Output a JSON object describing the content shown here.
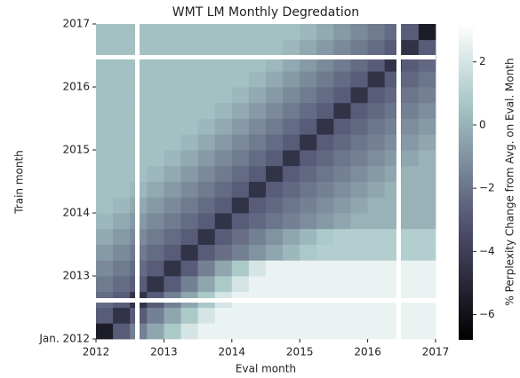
{
  "chart_data": {
    "type": "heatmap",
    "title": "WMT LM Monthly Degredation",
    "x_label": "Eval month",
    "y_label": "Train month",
    "colorbar_label": "% Perplexity Change from Avg. on Eval. Month",
    "colormap": "bone",
    "xlim": [
      2012,
      2017
    ],
    "ylim": [
      2012,
      2017
    ],
    "xticks": [
      2012,
      2013,
      2014,
      2015,
      2016,
      2017
    ],
    "yticks": [
      {
        "value": 2012,
        "label": "Jan. 2012"
      },
      2013,
      2014,
      2015,
      2016,
      2017
    ],
    "clim": [
      -6.8,
      3.2
    ],
    "cticks": [
      {
        "value": -6,
        "label": "−6"
      },
      {
        "value": -4,
        "label": "−4"
      },
      {
        "value": -2,
        "label": "−2"
      },
      0,
      2
    ],
    "xbins": [
      2012,
      2012.25,
      2012.5,
      2012.75,
      2013,
      2013.25,
      2013.5,
      2013.75,
      2014,
      2014.25,
      2014.5,
      2014.75,
      2015,
      2015.25,
      2015.5,
      2015.75,
      2016,
      2016.25,
      2016.5,
      2016.75,
      2017
    ],
    "ybins": [
      2012,
      2012.25,
      2012.5,
      2012.75,
      2013,
      2013.25,
      2013.5,
      2013.75,
      2014,
      2014.25,
      2014.5,
      2014.75,
      2015,
      2015.25,
      2015.5,
      2015.75,
      2016,
      2016.25,
      2016.5,
      2016.75,
      2017
    ],
    "values": [
      [
        -5.5,
        -2.8,
        -1.6,
        -0.4,
        0.8,
        2.0,
        2.6,
        2.6,
        2.6,
        2.6,
        2.6,
        2.6,
        2.6,
        2.6,
        2.6,
        2.6,
        2.6,
        2.6,
        2.6,
        2.6
      ],
      [
        -2.8,
        -4.5,
        -2.8,
        -1.6,
        -0.4,
        0.8,
        2.0,
        2.6,
        2.6,
        2.6,
        2.6,
        2.6,
        2.6,
        2.6,
        2.6,
        2.6,
        2.6,
        2.6,
        2.6,
        2.6
      ],
      [
        -2.3,
        -2.8,
        -4.5,
        -2.8,
        -1.6,
        -0.4,
        0.8,
        2.0,
        2.6,
        2.6,
        2.6,
        2.6,
        2.6,
        2.6,
        2.6,
        2.6,
        2.6,
        2.6,
        2.6,
        2.6
      ],
      [
        -1.8,
        -2.3,
        -2.8,
        -4.5,
        -2.8,
        -1.6,
        -0.4,
        0.8,
        2.0,
        2.6,
        2.6,
        2.6,
        2.6,
        2.6,
        2.6,
        2.6,
        2.6,
        2.6,
        2.6,
        2.6
      ],
      [
        -1.3,
        -1.8,
        -2.3,
        -2.8,
        -4.5,
        -2.8,
        -1.6,
        -0.4,
        0.8,
        2.0,
        2.6,
        2.6,
        2.6,
        2.6,
        2.6,
        2.6,
        2.6,
        2.6,
        2.6,
        2.6
      ],
      [
        -0.8,
        -1.3,
        -1.8,
        -2.3,
        -2.8,
        -4.5,
        -2.8,
        -2.2,
        -1.6,
        -1.0,
        -0.4,
        0.2,
        0.8,
        1.0,
        1.0,
        1.0,
        1.0,
        1.0,
        1.0,
        1.0
      ],
      [
        -0.3,
        -0.8,
        -1.3,
        -1.8,
        -2.3,
        -2.8,
        -4.5,
        -2.8,
        -2.2,
        -1.6,
        -1.0,
        -0.4,
        0.2,
        0.8,
        1.0,
        1.0,
        1.0,
        1.0,
        1.0,
        1.0
      ],
      [
        0.2,
        -0.3,
        -0.8,
        -1.3,
        -1.8,
        -2.3,
        -2.8,
        -4.5,
        -2.8,
        -2.4,
        -2.0,
        -1.6,
        -1.2,
        -0.8,
        -0.4,
        0.0,
        0.0,
        0.0,
        0.0,
        0.0
      ],
      [
        0.5,
        0.2,
        -0.3,
        -0.8,
        -1.3,
        -1.8,
        -2.3,
        -2.8,
        -4.5,
        -2.8,
        -2.4,
        -2.0,
        -1.6,
        -1.2,
        -0.8,
        -0.4,
        0.0,
        0.0,
        0.0,
        0.0
      ],
      [
        0.5,
        0.5,
        0.2,
        -0.3,
        -0.8,
        -1.3,
        -1.8,
        -2.3,
        -2.8,
        -4.5,
        -2.8,
        -2.4,
        -2.0,
        -1.6,
        -1.2,
        -0.8,
        -0.4,
        0.0,
        0.0,
        0.0
      ],
      [
        0.5,
        0.5,
        0.5,
        0.2,
        -0.3,
        -0.8,
        -1.3,
        -1.8,
        -2.3,
        -2.8,
        -4.5,
        -2.8,
        -2.4,
        -2.0,
        -1.6,
        -1.2,
        -0.8,
        -0.4,
        0.0,
        0.0
      ],
      [
        0.5,
        0.5,
        0.5,
        0.5,
        0.2,
        -0.3,
        -0.8,
        -1.3,
        -1.8,
        -2.3,
        -2.8,
        -4.5,
        -2.8,
        -2.4,
        -2.0,
        -1.6,
        -1.2,
        -0.8,
        -0.4,
        0.0
      ],
      [
        0.5,
        0.5,
        0.5,
        0.5,
        0.5,
        0.2,
        -0.3,
        -0.8,
        -1.3,
        -1.8,
        -2.3,
        -2.8,
        -4.5,
        -2.8,
        -2.4,
        -2.0,
        -1.6,
        -1.2,
        -0.8,
        -0.4
      ],
      [
        0.5,
        0.5,
        0.5,
        0.5,
        0.5,
        0.5,
        0.2,
        -0.3,
        -0.8,
        -1.3,
        -1.8,
        -2.3,
        -2.8,
        -4.5,
        -2.8,
        -2.4,
        -2.0,
        -1.6,
        -1.2,
        -0.8
      ],
      [
        0.5,
        0.5,
        0.5,
        0.5,
        0.5,
        0.5,
        0.5,
        0.2,
        -0.3,
        -0.8,
        -1.3,
        -1.8,
        -2.3,
        -2.8,
        -4.5,
        -2.8,
        -2.4,
        -2.0,
        -1.6,
        -1.2
      ],
      [
        0.5,
        0.5,
        0.5,
        0.5,
        0.5,
        0.5,
        0.5,
        0.5,
        0.2,
        -0.3,
        -0.8,
        -1.3,
        -1.8,
        -2.3,
        -2.8,
        -4.5,
        -2.8,
        -2.4,
        -2.0,
        -1.6
      ],
      [
        0.5,
        0.5,
        0.5,
        0.5,
        0.5,
        0.5,
        0.5,
        0.5,
        0.5,
        0.2,
        -0.3,
        -0.8,
        -1.3,
        -1.8,
        -2.3,
        -2.8,
        -4.5,
        -2.8,
        -2.4,
        -2.0
      ],
      [
        0.5,
        0.5,
        0.5,
        0.5,
        0.5,
        0.5,
        0.5,
        0.5,
        0.5,
        0.5,
        0.2,
        -0.3,
        -0.8,
        -1.3,
        -1.8,
        -2.3,
        -2.8,
        -4.5,
        -2.8,
        -2.4
      ],
      [
        0.5,
        0.5,
        0.5,
        0.5,
        0.5,
        0.5,
        0.5,
        0.5,
        0.5,
        0.5,
        0.5,
        0.2,
        -0.3,
        -0.8,
        -1.3,
        -1.8,
        -2.3,
        -2.8,
        -4.5,
        -2.8
      ],
      [
        0.5,
        0.5,
        0.5,
        0.5,
        0.5,
        0.5,
        0.5,
        0.5,
        0.5,
        0.5,
        0.5,
        0.5,
        0.2,
        -0.3,
        -0.8,
        -1.3,
        -1.8,
        -2.3,
        -2.8,
        -5.5
      ]
    ]
  }
}
